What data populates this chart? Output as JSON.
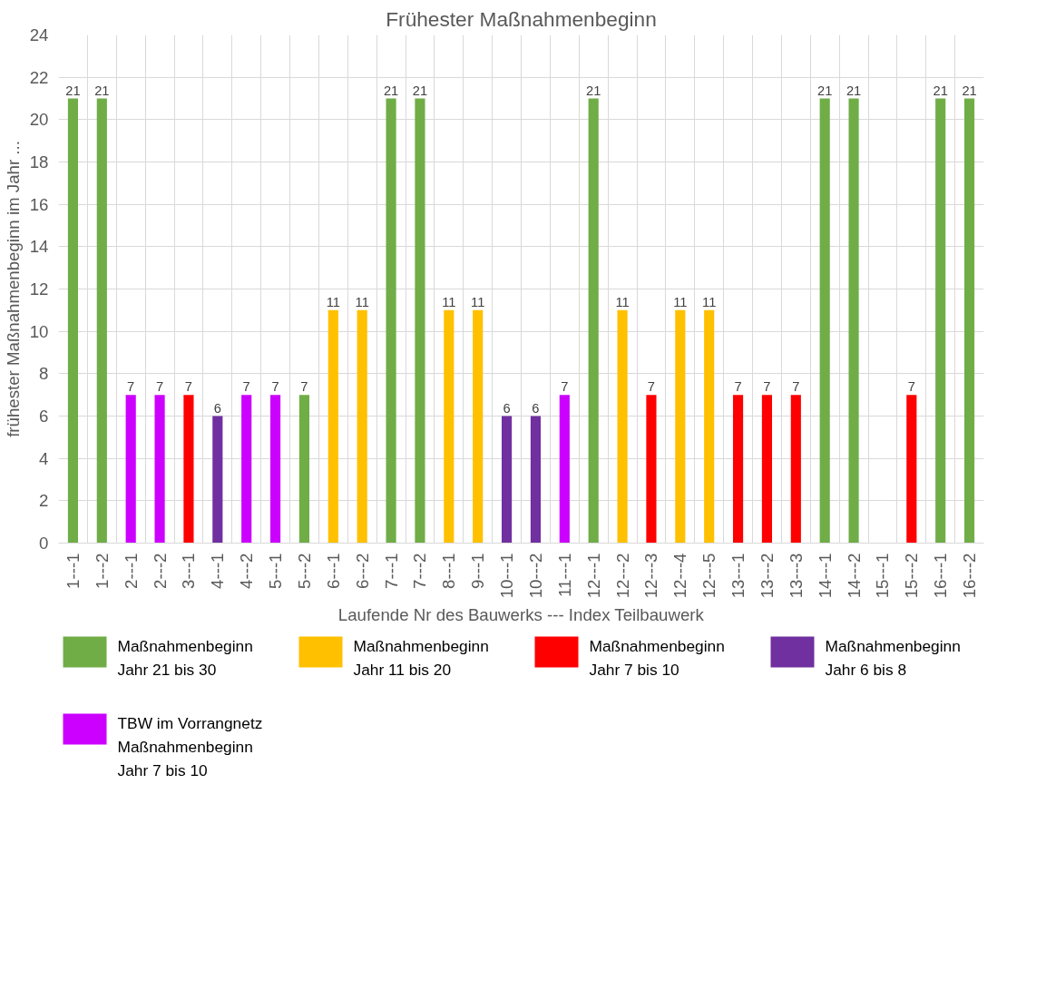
{
  "chart_data": {
    "type": "bar",
    "title": "Frühester Maßnahmenbeginn",
    "xlabel": "Laufende Nr des Bauwerks --- Index Teilbauwerk",
    "ylabel": "frühester Maßnahmenbeginn im Jahr ...",
    "categories": [
      "1---1",
      "1---2",
      "2---1",
      "2---2",
      "3---1",
      "4---1",
      "4---2",
      "5---1",
      "5---2",
      "6---1",
      "6---2",
      "7---1",
      "7---2",
      "8---1",
      "9---1",
      "10---1",
      "10---2",
      "11---1",
      "12---1",
      "12---2",
      "12---3",
      "12---4",
      "12---5",
      "13---1",
      "13---2",
      "13---3",
      "14---1",
      "14---2",
      "15---1",
      "15---2",
      "16---1",
      "16---2"
    ],
    "series": [
      {
        "name": "Maßnahmenbeginn\nJahr 21 bis 30",
        "color": "#70ad47",
        "values": [
          21,
          21,
          null,
          null,
          null,
          null,
          null,
          null,
          7,
          null,
          null,
          21,
          21,
          null,
          null,
          null,
          null,
          null,
          21,
          null,
          null,
          null,
          null,
          null,
          null,
          null,
          21,
          21,
          null,
          null,
          21,
          21
        ]
      },
      {
        "name": "Maßnahmenbeginn\nJahr 11 bis 20",
        "color": "#ffc000",
        "values": [
          null,
          null,
          null,
          null,
          null,
          null,
          null,
          null,
          null,
          11,
          11,
          null,
          null,
          11,
          11,
          null,
          null,
          null,
          null,
          11,
          null,
          11,
          11,
          null,
          null,
          null,
          null,
          null,
          null,
          null,
          null,
          null
        ]
      },
      {
        "name": "Maßnahmenbeginn\nJahr 7 bis 10",
        "color": "#ff0000",
        "values": [
          null,
          null,
          null,
          null,
          7,
          null,
          null,
          null,
          null,
          null,
          null,
          null,
          null,
          null,
          null,
          null,
          null,
          null,
          null,
          null,
          7,
          null,
          null,
          7,
          7,
          7,
          null,
          null,
          null,
          7,
          null,
          null
        ]
      },
      {
        "name": "Maßnahmenbeginn\nJahr 6 bis 8",
        "color": "#7030a0",
        "values": [
          null,
          null,
          null,
          null,
          null,
          6,
          null,
          null,
          null,
          null,
          null,
          null,
          null,
          null,
          null,
          6,
          6,
          null,
          null,
          null,
          null,
          null,
          null,
          null,
          null,
          null,
          null,
          null,
          null,
          null,
          null,
          null
        ]
      },
      {
        "name": "TBW im Vorrangnetz\nMaßnahmenbeginn\nJahr 7 bis 10",
        "color": "#cc00ff",
        "values": [
          null,
          null,
          7,
          7,
          null,
          null,
          7,
          7,
          null,
          null,
          null,
          null,
          null,
          null,
          null,
          null,
          null,
          7,
          null,
          null,
          null,
          null,
          null,
          null,
          null,
          null,
          null,
          null,
          null,
          null,
          null,
          null
        ]
      }
    ],
    "ylim": [
      0,
      24
    ],
    "yticks": [
      0,
      2,
      4,
      6,
      8,
      10,
      12,
      14,
      16,
      18,
      20,
      22,
      24
    ],
    "grid": true,
    "data_labels": true,
    "legend": "bottom"
  }
}
